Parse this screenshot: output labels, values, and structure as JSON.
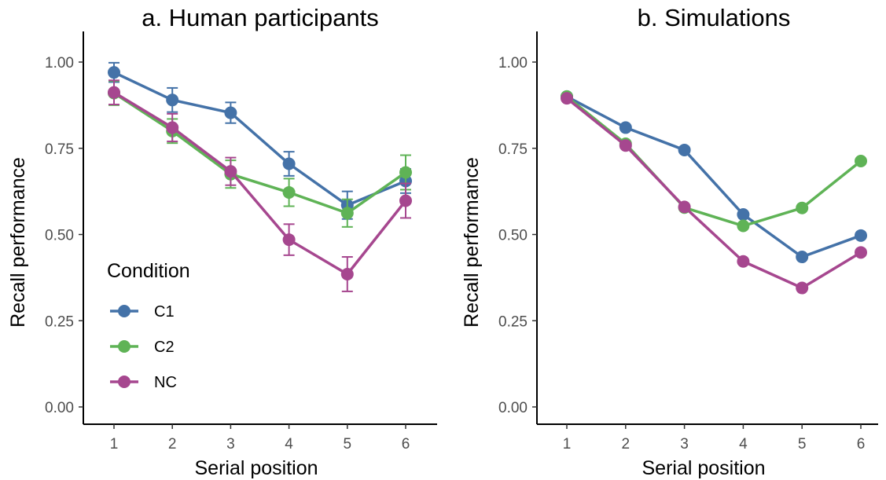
{
  "chart_data": [
    {
      "type": "line",
      "title": "a. Human participants",
      "xlabel": "Serial position",
      "ylabel": "Recall performance",
      "x": [
        1,
        2,
        3,
        4,
        5,
        6
      ],
      "ylim": [
        0,
        1.05
      ],
      "yticks": [
        "0.00",
        "0.25",
        "0.50",
        "0.75",
        "1.00"
      ],
      "error_bars": true,
      "grid": false,
      "legend": {
        "title": "Condition",
        "position": "inside-bottom-left"
      },
      "series": [
        {
          "name": "C1",
          "color": "#4472a8",
          "values": [
            0.97,
            0.89,
            0.853,
            0.705,
            0.585,
            0.655
          ],
          "err": [
            0.028,
            0.035,
            0.03,
            0.035,
            0.04,
            0.035
          ]
        },
        {
          "name": "C2",
          "color": "#5fb356",
          "values": [
            0.91,
            0.8,
            0.675,
            0.622,
            0.562,
            0.68
          ],
          "err": [
            0.035,
            0.035,
            0.04,
            0.04,
            0.04,
            0.05
          ]
        },
        {
          "name": "NC",
          "color": "#a6478f",
          "values": [
            0.912,
            0.81,
            0.683,
            0.485,
            0.385,
            0.598
          ],
          "err": [
            0.035,
            0.04,
            0.04,
            0.045,
            0.05,
            0.05
          ]
        }
      ]
    },
    {
      "type": "line",
      "title": "b. Simulations",
      "xlabel": "Serial position",
      "ylabel": "Recall performance",
      "x": [
        1,
        2,
        3,
        4,
        5,
        6
      ],
      "ylim": [
        0,
        1.05
      ],
      "yticks": [
        "0.00",
        "0.25",
        "0.50",
        "0.75",
        "1.00"
      ],
      "error_bars": false,
      "grid": false,
      "series": [
        {
          "name": "C1",
          "color": "#4472a8",
          "values": [
            0.9,
            0.81,
            0.745,
            0.558,
            0.435,
            0.497
          ]
        },
        {
          "name": "C2",
          "color": "#5fb356",
          "values": [
            0.9,
            0.763,
            0.578,
            0.525,
            0.577,
            0.713
          ]
        },
        {
          "name": "NC",
          "color": "#a6478f",
          "values": [
            0.895,
            0.758,
            0.58,
            0.422,
            0.345,
            0.448
          ]
        }
      ]
    }
  ]
}
